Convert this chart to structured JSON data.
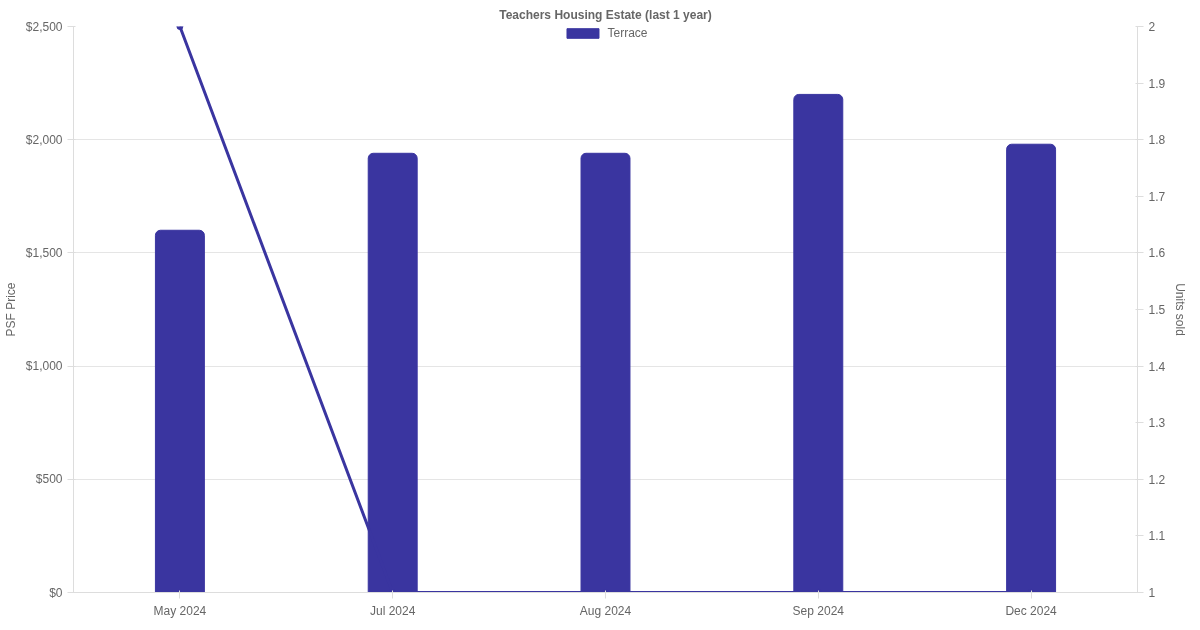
{
  "chart_data": {
    "type": "bar",
    "title": "Teachers Housing Estate (last 1 year)",
    "ylabel": "PSF Price",
    "y2label": "Units sold",
    "categories": [
      "May 2024",
      "Jul 2024",
      "Aug 2024",
      "Sep 2024",
      "Dec 2024"
    ],
    "series": [
      {
        "name": "Terrace",
        "color": "#3a35a0",
        "values": [
          1600,
          1940,
          1940,
          2200,
          1980
        ]
      },
      {
        "type": "line",
        "axis": "y2",
        "color": "#3a35a0",
        "values": [
          2,
          1,
          1,
          1,
          1
        ]
      }
    ],
    "ylim": [
      0,
      2500
    ],
    "yticks": [
      {
        "value": 0,
        "label": "$0"
      },
      {
        "value": 500,
        "label": "$500"
      },
      {
        "value": 1000,
        "label": "$1,000"
      },
      {
        "value": 1500,
        "label": "$1,500"
      },
      {
        "value": 2000,
        "label": "$2,000"
      },
      {
        "value": 2500,
        "label": "$2,500"
      }
    ],
    "y2lim": [
      1,
      2
    ],
    "y2ticks": [
      1,
      1.1,
      1.2,
      1.3,
      1.4,
      1.5,
      1.6,
      1.7,
      1.8,
      1.9,
      2
    ],
    "grid": "y",
    "legend": "top",
    "marker": "circle",
    "line_style": "solid"
  }
}
